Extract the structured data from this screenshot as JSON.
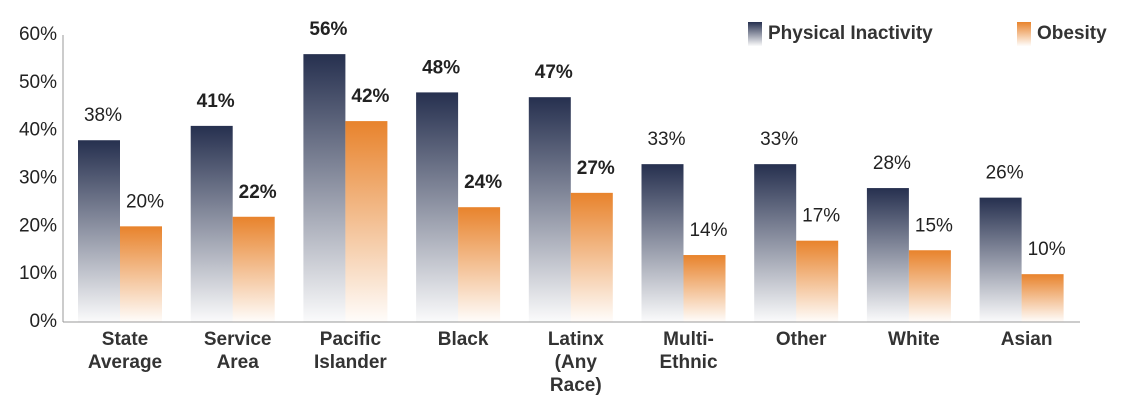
{
  "chart_data": {
    "type": "bar",
    "categories": [
      "State\nAverage",
      "Service\nArea",
      "Pacific\nIslander",
      "Black",
      "Latinx\n(Any\nRace)",
      "Multi-\nEthnic",
      "Other",
      "White",
      "Asian"
    ],
    "series": [
      {
        "name": "Physical Inactivity",
        "color": "#26304f",
        "values": [
          38,
          41,
          56,
          48,
          47,
          33,
          33,
          28,
          26
        ],
        "value_labels": [
          "38%",
          "41%",
          "56%",
          "48%",
          "47%",
          "33%",
          "33%",
          "28%",
          "26%"
        ],
        "value_label_colors": [
          "#222222",
          "#d0282e",
          "#d0282e",
          "#d0282e",
          "#d0282e",
          "#222222",
          "#222222",
          "#222222",
          "#222222"
        ]
      },
      {
        "name": "Obesity",
        "color": "#e8832c",
        "values": [
          20,
          22,
          42,
          24,
          27,
          14,
          17,
          15,
          10
        ],
        "value_labels": [
          "20%",
          "22%",
          "42%",
          "24%",
          "27%",
          "14%",
          "17%",
          "15%",
          "10%"
        ],
        "value_label_colors": [
          "#222222",
          "#d0282e",
          "#d0282e",
          "#d0282e",
          "#d0282e",
          "#222222",
          "#222222",
          "#222222",
          "#222222"
        ]
      }
    ],
    "ylim": [
      0,
      60
    ],
    "yticks": [
      {
        "value": 0,
        "label": "0%"
      },
      {
        "value": 10,
        "label": "10%"
      },
      {
        "value": 20,
        "label": "20%"
      },
      {
        "value": 30,
        "label": "30%"
      },
      {
        "value": 40,
        "label": "40%"
      },
      {
        "value": 50,
        "label": "50%"
      },
      {
        "value": 60,
        "label": "60%"
      }
    ],
    "legend": "top-right",
    "grid": false
  }
}
